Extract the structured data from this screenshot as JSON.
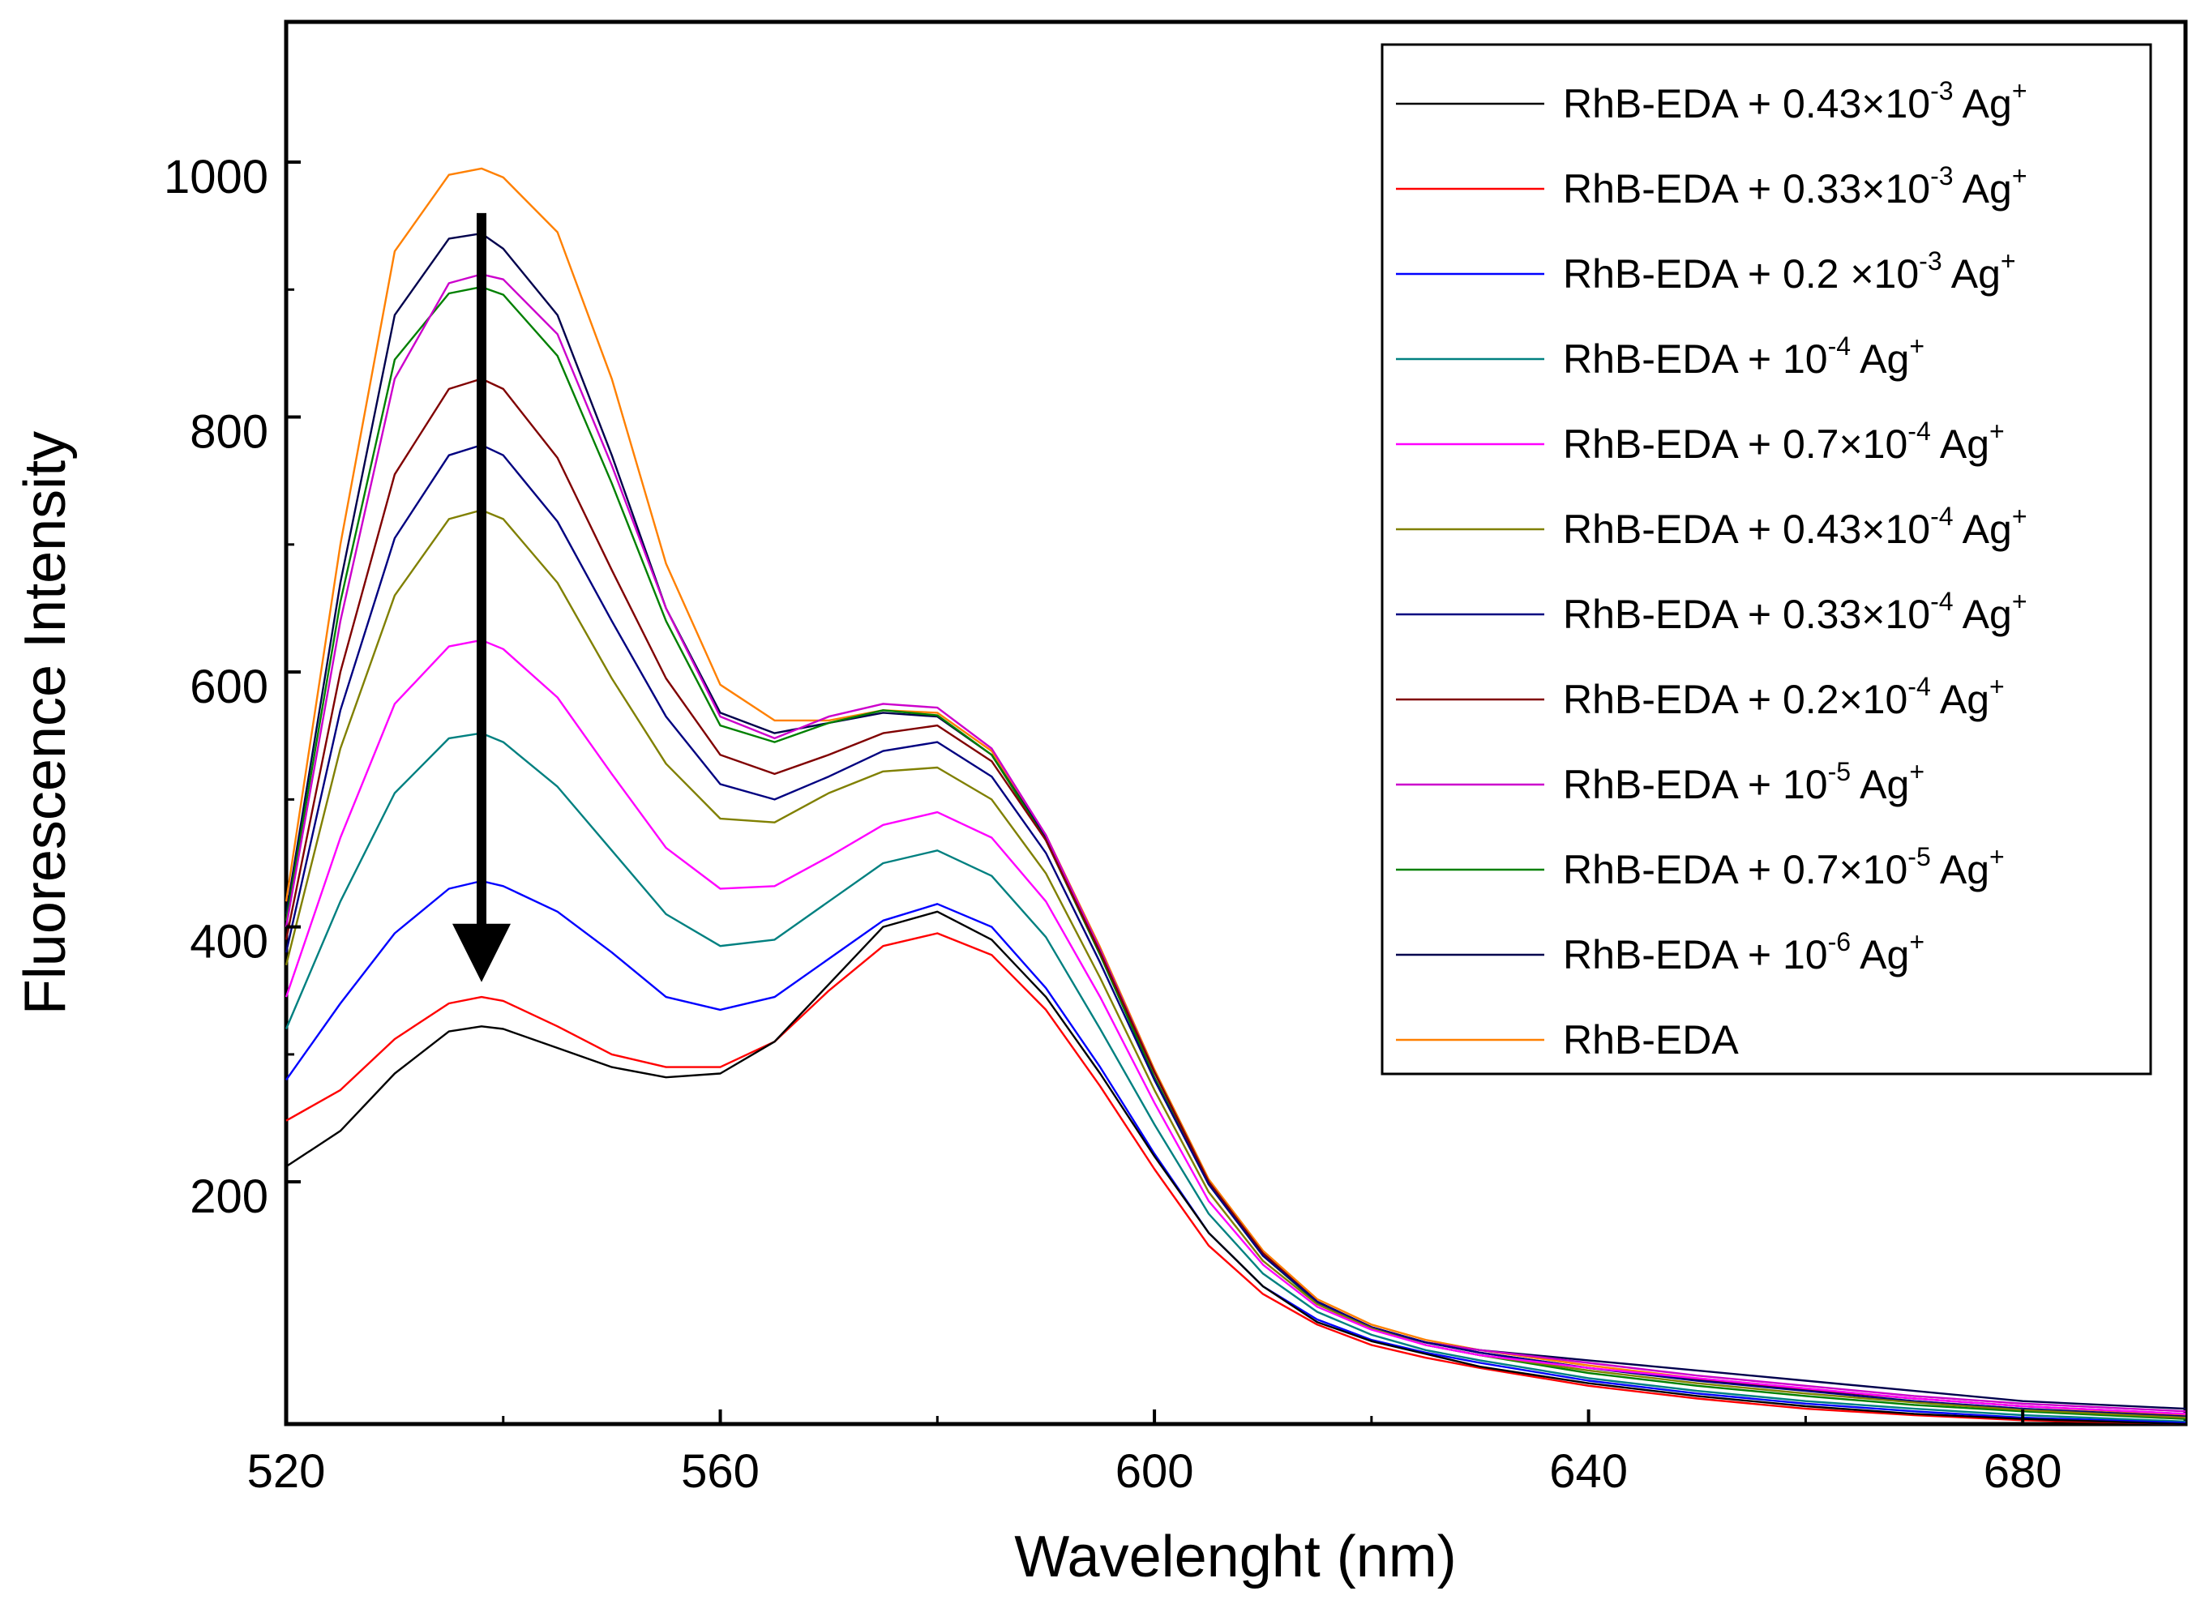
{
  "chart_data": {
    "type": "line",
    "title": "",
    "xlabel": "Wavelenght (nm)",
    "ylabel": "Fluorescence Intensity",
    "xlim": [
      520,
      695
    ],
    "ylim": [
      10,
      1110
    ],
    "xticks": [
      520,
      560,
      600,
      640,
      680
    ],
    "yticks": [
      200,
      400,
      600,
      800,
      1000
    ],
    "xtick_labels": [
      "520",
      "560",
      "600",
      "640",
      "680"
    ],
    "ytick_labels": [
      "200",
      "400",
      "600",
      "800",
      "1000"
    ],
    "legend_position": "top-right",
    "annotation": {
      "type": "arrow",
      "from": [
        538,
        960
      ],
      "to": [
        538,
        345
      ],
      "direction": "down",
      "color": "#000000"
    },
    "series": [
      {
        "name": "RhB-EDA + 0.43×10-3 Ag+",
        "label": {
          "base": "RhB-EDA + 0.43×10",
          "exp": "-3",
          "tail": " Ag",
          "sup": "+"
        },
        "color": "#000000",
        "x": [
          520,
          525,
          530,
          535,
          538,
          540,
          545,
          550,
          555,
          560,
          565,
          570,
          575,
          580,
          585,
          590,
          595,
          600,
          605,
          610,
          615,
          620,
          625,
          630,
          640,
          650,
          660,
          670,
          680,
          695
        ],
        "y": [
          212,
          240,
          285,
          318,
          322,
          320,
          305,
          290,
          282,
          285,
          310,
          355,
          400,
          412,
          390,
          345,
          285,
          220,
          160,
          118,
          90,
          75,
          65,
          55,
          42,
          32,
          24,
          18,
          14,
          10
        ]
      },
      {
        "name": "RhB-EDA + 0.33×10-3 Ag+",
        "label": {
          "base": "RhB-EDA + 0.33×10",
          "exp": "-3",
          "tail": " Ag",
          "sup": "+"
        },
        "color": "#ff0000",
        "x": [
          520,
          525,
          530,
          535,
          538,
          540,
          545,
          550,
          555,
          560,
          565,
          570,
          575,
          580,
          585,
          590,
          595,
          600,
          605,
          610,
          615,
          620,
          625,
          630,
          640,
          650,
          660,
          670,
          680,
          695
        ],
        "y": [
          248,
          272,
          312,
          340,
          345,
          342,
          322,
          300,
          290,
          290,
          310,
          350,
          385,
          395,
          378,
          335,
          275,
          210,
          150,
          112,
          88,
          72,
          62,
          54,
          40,
          30,
          22,
          17,
          13,
          10
        ]
      },
      {
        "name": "RhB-EDA + 0.2 ×10-3 Ag+",
        "label": {
          "base": "RhB-EDA + 0.2 ×10",
          "exp": "-3",
          "tail": " Ag",
          "sup": "+"
        },
        "color": "#0000ff",
        "x": [
          520,
          525,
          530,
          535,
          538,
          540,
          545,
          550,
          555,
          560,
          565,
          570,
          575,
          580,
          585,
          590,
          595,
          600,
          605,
          610,
          615,
          620,
          625,
          630,
          640,
          650,
          660,
          670,
          680,
          695
        ],
        "y": [
          280,
          340,
          395,
          430,
          436,
          432,
          412,
          380,
          345,
          335,
          345,
          375,
          405,
          418,
          400,
          352,
          290,
          222,
          160,
          118,
          92,
          76,
          66,
          58,
          44,
          34,
          26,
          20,
          15,
          11
        ]
      },
      {
        "name": "RhB-EDA + 10-4 Ag+",
        "label": {
          "base": "RhB-EDA + 10",
          "exp": "-4",
          "tail": " Ag",
          "sup": "+"
        },
        "color": "#008080",
        "x": [
          520,
          525,
          530,
          535,
          538,
          540,
          545,
          550,
          555,
          560,
          565,
          570,
          575,
          580,
          585,
          590,
          595,
          600,
          605,
          610,
          615,
          620,
          625,
          630,
          640,
          650,
          660,
          670,
          680,
          695
        ],
        "y": [
          320,
          420,
          505,
          548,
          552,
          545,
          510,
          460,
          410,
          385,
          390,
          420,
          450,
          460,
          440,
          392,
          320,
          245,
          175,
          128,
          98,
          80,
          68,
          60,
          46,
          36,
          28,
          22,
          17,
          12
        ]
      },
      {
        "name": "RhB-EDA + 0.7×10-4 Ag+",
        "label": {
          "base": "RhB-EDA + 0.7×10",
          "exp": "-4",
          "tail": " Ag",
          "sup": "+"
        },
        "color": "#ff00ff",
        "x": [
          520,
          525,
          530,
          535,
          538,
          540,
          545,
          550,
          555,
          560,
          565,
          570,
          575,
          580,
          585,
          590,
          595,
          600,
          605,
          610,
          615,
          620,
          625,
          630,
          640,
          650,
          660,
          670,
          680,
          695
        ],
        "y": [
          345,
          470,
          575,
          620,
          625,
          618,
          580,
          520,
          462,
          430,
          432,
          455,
          480,
          490,
          470,
          420,
          345,
          262,
          185,
          135,
          102,
          84,
          72,
          64,
          54,
          46,
          38,
          30,
          24,
          18
        ]
      },
      {
        "name": "RhB-EDA + 0.43×10-4 Ag+",
        "label": {
          "base": "RhB-EDA + 0.43×10",
          "exp": "-4",
          "tail": " Ag",
          "sup": "+"
        },
        "color": "#808000",
        "x": [
          520,
          525,
          530,
          535,
          538,
          540,
          545,
          550,
          555,
          560,
          565,
          570,
          575,
          580,
          585,
          590,
          595,
          600,
          605,
          610,
          615,
          620,
          625,
          630,
          640,
          650,
          660,
          670,
          680,
          695
        ],
        "y": [
          370,
          540,
          660,
          720,
          727,
          720,
          670,
          595,
          528,
          485,
          482,
          505,
          522,
          525,
          500,
          442,
          360,
          272,
          192,
          138,
          104,
          85,
          72,
          64,
          52,
          42,
          34,
          27,
          21,
          15
        ]
      },
      {
        "name": "RhB-EDA + 0.33×10-4 Ag+",
        "label": {
          "base": "RhB-EDA + 0.33×10",
          "exp": "-4",
          "tail": " Ag",
          "sup": "+"
        },
        "color": "#000080",
        "x": [
          520,
          525,
          530,
          535,
          538,
          540,
          545,
          550,
          555,
          560,
          565,
          570,
          575,
          580,
          585,
          590,
          595,
          600,
          605,
          610,
          615,
          620,
          625,
          630,
          640,
          650,
          660,
          670,
          680,
          695
        ],
        "y": [
          380,
          570,
          705,
          770,
          778,
          770,
          718,
          640,
          565,
          512,
          500,
          518,
          538,
          545,
          518,
          458,
          372,
          280,
          198,
          142,
          106,
          86,
          74,
          66,
          54,
          44,
          36,
          28,
          22,
          16
        ]
      },
      {
        "name": "RhB-EDA + 0.2×10-4 Ag+",
        "label": {
          "base": "RhB-EDA + 0.2×10",
          "exp": "-4",
          "tail": " Ag",
          "sup": "+"
        },
        "color": "#800000",
        "x": [
          520,
          525,
          530,
          535,
          538,
          540,
          545,
          550,
          555,
          560,
          565,
          570,
          575,
          580,
          585,
          590,
          595,
          600,
          605,
          610,
          615,
          620,
          625,
          630,
          640,
          650,
          660,
          670,
          680,
          695
        ],
        "y": [
          390,
          600,
          755,
          822,
          830,
          822,
          768,
          680,
          595,
          535,
          520,
          535,
          552,
          558,
          530,
          468,
          380,
          286,
          200,
          144,
          106,
          86,
          74,
          66,
          54,
          45,
          37,
          30,
          24,
          18
        ]
      },
      {
        "name": "RhB-EDA + 10-5 Ag+",
        "label": {
          "base": "RhB-EDA + 10",
          "exp": "-5",
          "tail": " Ag",
          "sup": "+"
        },
        "color": "#cc00cc",
        "x": [
          520,
          525,
          530,
          535,
          538,
          540,
          545,
          550,
          555,
          560,
          565,
          570,
          575,
          580,
          585,
          590,
          595,
          600,
          605,
          610,
          615,
          620,
          625,
          630,
          640,
          650,
          660,
          670,
          680,
          695
        ],
        "y": [
          400,
          640,
          830,
          905,
          912,
          908,
          865,
          762,
          650,
          565,
          548,
          565,
          575,
          572,
          540,
          472,
          382,
          286,
          200,
          144,
          106,
          86,
          74,
          68,
          58,
          48,
          40,
          32,
          26,
          20
        ]
      },
      {
        "name": "RhB-EDA + 0.7×10-5 Ag+",
        "label": {
          "base": "RhB-EDA + 0.7×10",
          "exp": "-5",
          "tail": " Ag",
          "sup": "+"
        },
        "color": "#008000",
        "x": [
          520,
          525,
          530,
          535,
          538,
          540,
          545,
          550,
          555,
          560,
          565,
          570,
          575,
          580,
          585,
          590,
          595,
          600,
          605,
          610,
          615,
          620,
          625,
          630,
          640,
          650,
          660,
          670,
          680,
          695
        ],
        "y": [
          405,
          655,
          845,
          897,
          902,
          896,
          848,
          748,
          640,
          558,
          545,
          560,
          570,
          566,
          535,
          468,
          378,
          282,
          198,
          142,
          105,
          85,
          72,
          64,
          50,
          40,
          32,
          25,
          20,
          14
        ]
      },
      {
        "name": "RhB-EDA + 10-6 Ag+",
        "label": {
          "base": "RhB-EDA + 10",
          "exp": "-6",
          "tail": " Ag",
          "sup": "+"
        },
        "color": "#00004d",
        "x": [
          520,
          525,
          530,
          535,
          538,
          540,
          545,
          550,
          555,
          560,
          565,
          570,
          575,
          580,
          585,
          590,
          595,
          600,
          605,
          610,
          615,
          620,
          625,
          630,
          640,
          650,
          660,
          670,
          680,
          695
        ],
        "y": [
          410,
          670,
          880,
          940,
          944,
          932,
          880,
          770,
          650,
          568,
          552,
          560,
          568,
          565,
          535,
          470,
          382,
          286,
          200,
          144,
          106,
          86,
          74,
          68,
          60,
          52,
          44,
          36,
          28,
          22
        ]
      },
      {
        "name": "RhB-EDA",
        "label": {
          "base": "RhB-EDA",
          "exp": "",
          "tail": "",
          "sup": ""
        },
        "color": "#ff8000",
        "x": [
          520,
          525,
          530,
          535,
          538,
          540,
          545,
          550,
          555,
          560,
          565,
          570,
          575,
          580,
          585,
          590,
          595,
          600,
          605,
          610,
          615,
          620,
          625,
          630,
          640,
          650,
          660,
          670,
          680,
          695
        ],
        "y": [
          420,
          700,
          930,
          990,
          995,
          988,
          945,
          830,
          685,
          590,
          562,
          562,
          570,
          568,
          538,
          472,
          384,
          288,
          202,
          146,
          108,
          88,
          76,
          68,
          56,
          46,
          38,
          30,
          24,
          17
        ]
      }
    ]
  }
}
